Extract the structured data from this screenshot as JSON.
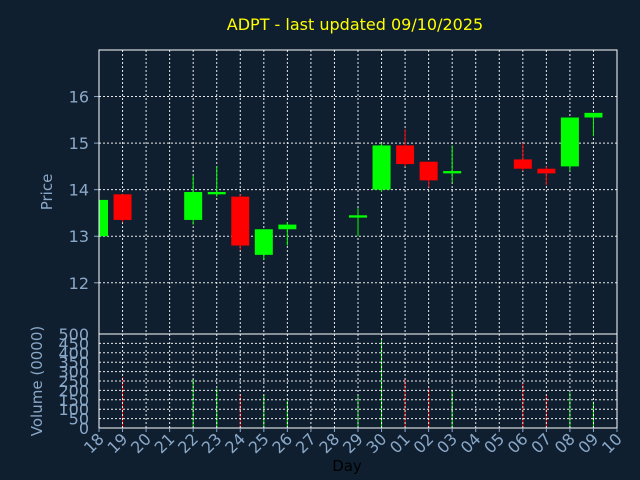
{
  "colors": {
    "background": "#0f1f2f",
    "title": "#ffff00",
    "axis_text": "#8aa8c8",
    "xlabel": "#000000",
    "grid": "#ffffff",
    "up": "#00ff00",
    "down": "#ff0000"
  },
  "chart_data": {
    "type": "candlestick",
    "title": "ADPT - last updated 09/10/2025",
    "xlabel": "Day",
    "ylabel": "Price",
    "volume_ylabel": "Volume (0000)",
    "grid": true,
    "price_ylim": [
      10.9,
      17.0
    ],
    "price_yticks": [
      12,
      13,
      14,
      15,
      16
    ],
    "volume_ylim": [
      0,
      500
    ],
    "volume_yticks": [
      0,
      50,
      100,
      150,
      200,
      250,
      300,
      350,
      400,
      450,
      500
    ],
    "x_ticks": [
      "18",
      "19",
      "20",
      "21",
      "22",
      "23",
      "24",
      "25",
      "26",
      "27",
      "28",
      "29",
      "30",
      "01",
      "02",
      "03",
      "04",
      "05",
      "06",
      "07",
      "08",
      "09",
      "10"
    ],
    "candles": [
      {
        "x": "18",
        "open": 13.0,
        "high": 13.8,
        "low": 12.95,
        "close": 13.78,
        "volume": 0
      },
      {
        "x": "19",
        "open": 13.9,
        "high": 13.9,
        "low": 13.3,
        "close": 13.35,
        "volume": 270
      },
      {
        "x": "22",
        "open": 13.35,
        "high": 14.3,
        "low": 13.25,
        "close": 13.95,
        "volume": 260
      },
      {
        "x": "23",
        "open": 13.9,
        "high": 14.5,
        "low": 13.85,
        "close": 13.95,
        "volume": 210
      },
      {
        "x": "24",
        "open": 13.85,
        "high": 13.9,
        "low": 12.7,
        "close": 12.8,
        "volume": 180
      },
      {
        "x": "25",
        "open": 12.6,
        "high": 13.15,
        "low": 12.5,
        "close": 13.15,
        "volume": 175
      },
      {
        "x": "26",
        "open": 13.15,
        "high": 13.3,
        "low": 12.8,
        "close": 13.25,
        "volume": 145
      },
      {
        "x": "29",
        "open": 13.4,
        "high": 13.6,
        "low": 13.0,
        "close": 13.45,
        "volume": 180
      },
      {
        "x": "30",
        "open": 14.0,
        "high": 15.0,
        "low": 13.95,
        "close": 14.95,
        "volume": 470
      },
      {
        "x": "01",
        "open": 14.95,
        "high": 15.3,
        "low": 14.5,
        "close": 14.55,
        "volume": 260
      },
      {
        "x": "02",
        "open": 14.6,
        "high": 14.6,
        "low": 14.05,
        "close": 14.2,
        "volume": 210
      },
      {
        "x": "03",
        "open": 14.35,
        "high": 14.95,
        "low": 14.15,
        "close": 14.4,
        "volume": 200
      },
      {
        "x": "06",
        "open": 14.65,
        "high": 15.0,
        "low": 14.4,
        "close": 14.45,
        "volume": 240
      },
      {
        "x": "07",
        "open": 14.45,
        "high": 14.5,
        "low": 14.1,
        "close": 14.35,
        "volume": 175
      },
      {
        "x": "08",
        "open": 14.5,
        "high": 15.55,
        "low": 14.4,
        "close": 15.55,
        "volume": 190
      },
      {
        "x": "09",
        "open": 15.55,
        "high": 15.65,
        "low": 15.15,
        "close": 15.65,
        "volume": 140
      }
    ]
  }
}
